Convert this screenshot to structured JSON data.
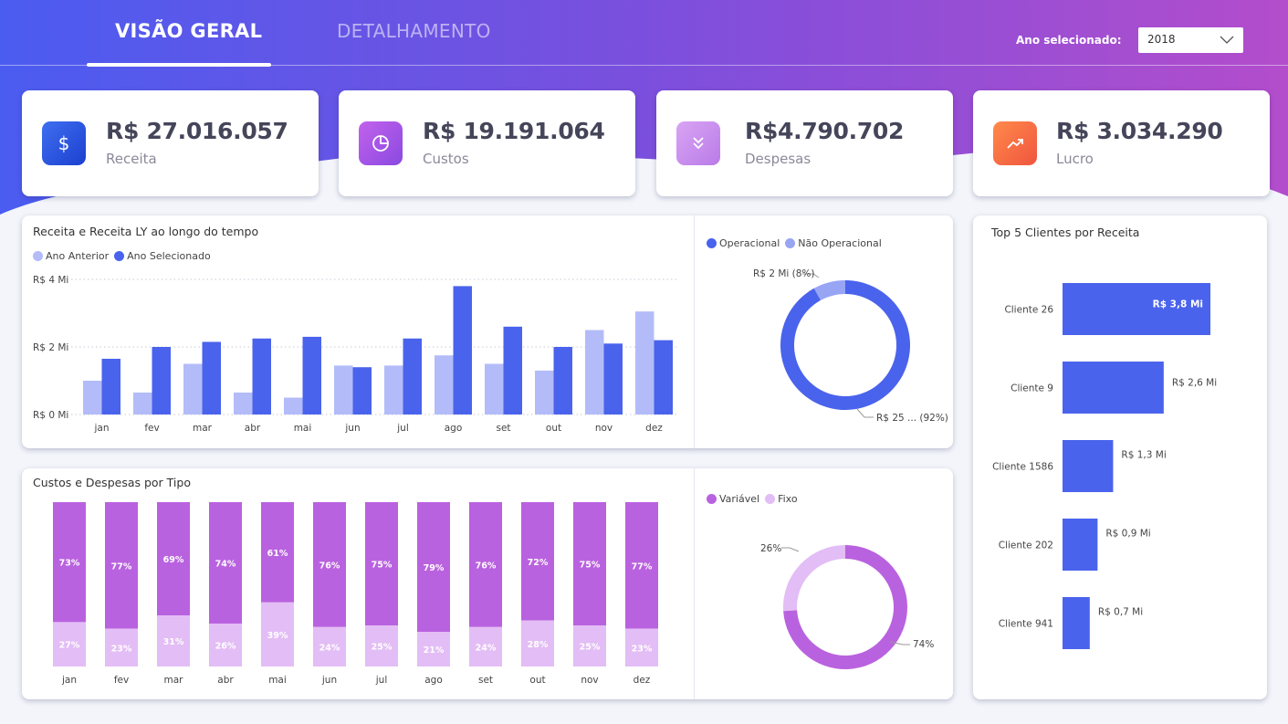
{
  "nav": {
    "tabs": [
      {
        "label": "VISÃO GERAL",
        "active": true
      },
      {
        "label": "DETALHAMENTO",
        "active": false
      }
    ],
    "year_label": "Ano selecionado:",
    "year_value": "2018"
  },
  "colors": {
    "header_gradient_start": "#4b5cf0",
    "header_gradient_mid": "#7b4fdd",
    "header_gradient_end": "#b34dcc",
    "revenue_prev": "#b3bcf9",
    "revenue_curr": "#4a63ec",
    "variable": "#b962df",
    "fixed": "#e3bdf5",
    "operational": "#4a63ec",
    "non_operational": "#98a5f5"
  },
  "kpis": [
    {
      "value": "R$ 27.016.057",
      "label": "Receita",
      "icon": "dollar-icon"
    },
    {
      "value": "R$ 19.191.064",
      "label": "Custos",
      "icon": "pie-chart-icon"
    },
    {
      "value": "R$4.790.702",
      "label": "Despesas",
      "icon": "chevrons-down-icon"
    },
    {
      "value": "R$ 3.034.290",
      "label": "Lucro",
      "icon": "trending-up-icon"
    }
  ],
  "chart_data": [
    {
      "type": "bar",
      "title": "Receita e Receita LY ao longo do tempo",
      "categories": [
        "jan",
        "fev",
        "mar",
        "abr",
        "mai",
        "jun",
        "jul",
        "ago",
        "set",
        "out",
        "nov",
        "dez"
      ],
      "series": [
        {
          "name": "Ano Anterior",
          "values": [
            1.0,
            0.65,
            1.5,
            0.65,
            0.5,
            1.45,
            1.45,
            1.75,
            1.5,
            1.3,
            2.5,
            3.05
          ]
        },
        {
          "name": "Ano Selecionado",
          "values": [
            1.65,
            2.0,
            2.15,
            2.25,
            2.3,
            1.4,
            2.25,
            3.8,
            2.6,
            2.0,
            2.1,
            2.2
          ]
        }
      ],
      "y_ticks": [
        "R$ 0 Mi",
        "R$ 2 Mi",
        "R$ 4 Mi"
      ],
      "y_tick_values": [
        0,
        2,
        4
      ],
      "ylim": [
        0,
        4
      ],
      "grid": true,
      "legend": "top-left"
    },
    {
      "type": "pie",
      "donut": true,
      "labels": [
        "Operacional",
        "Não Operacional"
      ],
      "values": [
        92,
        8
      ],
      "data_labels": [
        "R$ 25 ... (92%)",
        "R$ 2 Mi (8%)"
      ],
      "legend": "top-left"
    },
    {
      "type": "bar",
      "stacked": true,
      "percent": true,
      "title": "Custos e Despesas por Tipo",
      "categories": [
        "jan",
        "fev",
        "mar",
        "abr",
        "mai",
        "jun",
        "jul",
        "ago",
        "set",
        "out",
        "nov",
        "dez"
      ],
      "series": [
        {
          "name": "Variável",
          "values": [
            73,
            77,
            69,
            74,
            61,
            76,
            75,
            79,
            76,
            72,
            75,
            77
          ]
        },
        {
          "name": "Fixo",
          "values": [
            27,
            23,
            31,
            26,
            39,
            24,
            25,
            21,
            24,
            28,
            25,
            23
          ]
        }
      ],
      "legend": "none"
    },
    {
      "type": "pie",
      "donut": true,
      "labels": [
        "Variável",
        "Fixo"
      ],
      "values": [
        74,
        26
      ],
      "data_labels": [
        "74%",
        "26%"
      ],
      "legend": "top-left"
    },
    {
      "type": "bar",
      "orientation": "horizontal",
      "title": "Top 5 Clientes por Receita",
      "categories": [
        "Cliente 26",
        "Cliente 9",
        "Cliente 1586",
        "Cliente 202",
        "Cliente 941"
      ],
      "values": [
        3.8,
        2.6,
        1.3,
        0.9,
        0.7
      ],
      "data_labels": [
        "R$ 3,8 Mi",
        "R$ 2,6 Mi",
        "R$ 1,3 Mi",
        "R$ 0,9 Mi",
        "R$ 0,7 Mi"
      ],
      "xlim": [
        0,
        3.8
      ]
    }
  ]
}
